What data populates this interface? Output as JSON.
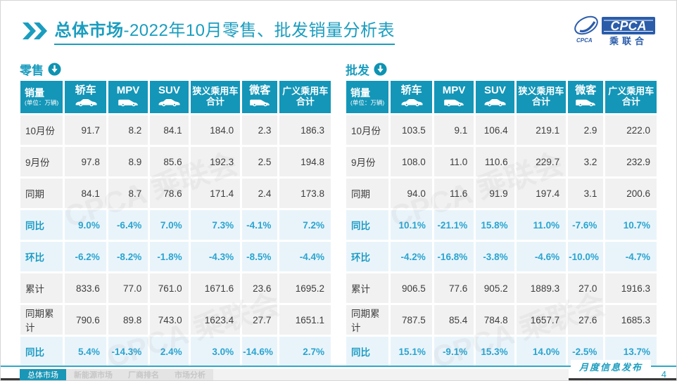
{
  "title": {
    "section": "总体市场",
    "rest": "-2022年10月零售、批发销量分析表"
  },
  "logo": {
    "cpca": "CPCA",
    "sub": "乘联合",
    "small": "CPCA"
  },
  "watermark": "CPCA 乘联会",
  "tables": [
    {
      "name": "零售",
      "unit_label": "销量",
      "unit_sub": "(单位：万辆)",
      "columns": [
        {
          "label": "轿车",
          "icon": "sedan"
        },
        {
          "label": "MPV",
          "icon": "mpv"
        },
        {
          "label": "SUV",
          "icon": "suv"
        },
        {
          "label": "狭义乘用车",
          "label2": "合计"
        },
        {
          "label": "微客",
          "icon": "minibus"
        },
        {
          "label": "广义乘用车",
          "label2": "合计"
        }
      ],
      "rows": [
        {
          "label": "10月份",
          "type": "num",
          "values": [
            "91.7",
            "8.2",
            "84.1",
            "184.0",
            "2.3",
            "186.3"
          ]
        },
        {
          "label": "9月份",
          "type": "num",
          "values": [
            "97.8",
            "8.9",
            "85.6",
            "192.3",
            "2.5",
            "194.8"
          ]
        },
        {
          "label": "同期",
          "type": "num",
          "values": [
            "84.1",
            "8.7",
            "78.6",
            "171.4",
            "2.4",
            "173.8"
          ]
        },
        {
          "label": "同比",
          "type": "pct",
          "values": [
            "9.0%",
            "-6.4%",
            "7.0%",
            "7.3%",
            "-4.1%",
            "7.2%"
          ]
        },
        {
          "label": "环比",
          "type": "pct",
          "values": [
            "-6.2%",
            "-8.2%",
            "-1.8%",
            "-4.3%",
            "-8.5%",
            "-4.4%"
          ]
        },
        {
          "label": "累计",
          "type": "num",
          "values": [
            "833.6",
            "77.0",
            "761.0",
            "1671.6",
            "23.6",
            "1695.2"
          ]
        },
        {
          "label": "同期累计",
          "type": "num",
          "values": [
            "790.6",
            "89.8",
            "743.0",
            "1623.4",
            "27.7",
            "1651.1"
          ]
        },
        {
          "label": "同比",
          "type": "pct",
          "values": [
            "5.4%",
            "-14.3%",
            "2.4%",
            "3.0%",
            "-14.6%",
            "2.7%"
          ]
        }
      ]
    },
    {
      "name": "批发",
      "unit_label": "销量",
      "unit_sub": "(单位：万辆)",
      "columns": [
        {
          "label": "轿车",
          "icon": "sedan"
        },
        {
          "label": "MPV",
          "icon": "mpv"
        },
        {
          "label": "SUV",
          "icon": "suv"
        },
        {
          "label": "狭义乘用车",
          "label2": "合计"
        },
        {
          "label": "微客",
          "icon": "minibus"
        },
        {
          "label": "广义乘用车",
          "label2": "合计"
        }
      ],
      "rows": [
        {
          "label": "10月份",
          "type": "num",
          "values": [
            "103.5",
            "9.1",
            "106.4",
            "219.1",
            "2.9",
            "222.0"
          ]
        },
        {
          "label": "9月份",
          "type": "num",
          "values": [
            "108.0",
            "11.0",
            "110.6",
            "229.7",
            "3.2",
            "232.9"
          ]
        },
        {
          "label": "同期",
          "type": "num",
          "values": [
            "94.0",
            "11.6",
            "91.9",
            "197.4",
            "3.1",
            "200.6"
          ]
        },
        {
          "label": "同比",
          "type": "pct",
          "values": [
            "10.1%",
            "-21.1%",
            "15.8%",
            "11.0%",
            "-7.6%",
            "10.7%"
          ]
        },
        {
          "label": "环比",
          "type": "pct",
          "values": [
            "-4.2%",
            "-16.8%",
            "-3.8%",
            "-4.6%",
            "-10.0%",
            "-4.7%"
          ]
        },
        {
          "label": "累计",
          "type": "num",
          "values": [
            "906.5",
            "77.6",
            "905.2",
            "1889.3",
            "27.0",
            "1916.3"
          ]
        },
        {
          "label": "同期累计",
          "type": "num",
          "values": [
            "787.5",
            "85.4",
            "784.8",
            "1657.7",
            "27.6",
            "1685.3"
          ]
        },
        {
          "label": "同比",
          "type": "pct",
          "values": [
            "15.1%",
            "-9.1%",
            "15.3%",
            "14.0%",
            "-2.5%",
            "13.7%"
          ]
        }
      ]
    }
  ],
  "footer": {
    "tabs": [
      {
        "label": "总体市场",
        "active": true
      },
      {
        "label": "新能源市场",
        "active": false
      },
      {
        "label": "厂商排名",
        "active": false
      },
      {
        "label": "市场分析",
        "active": false
      }
    ],
    "publish": "月度信息发布",
    "page": "4"
  },
  "colors": {
    "accent": "#1a9dbf",
    "header_bg": "#1496b8",
    "pct_row_bg": "#e9f4fa",
    "pct_text": "#2aa4d0",
    "num_row_bg": "#f1f1f1",
    "logo_blue": "#2a5caa",
    "footer_line": "#2fa9c9"
  }
}
